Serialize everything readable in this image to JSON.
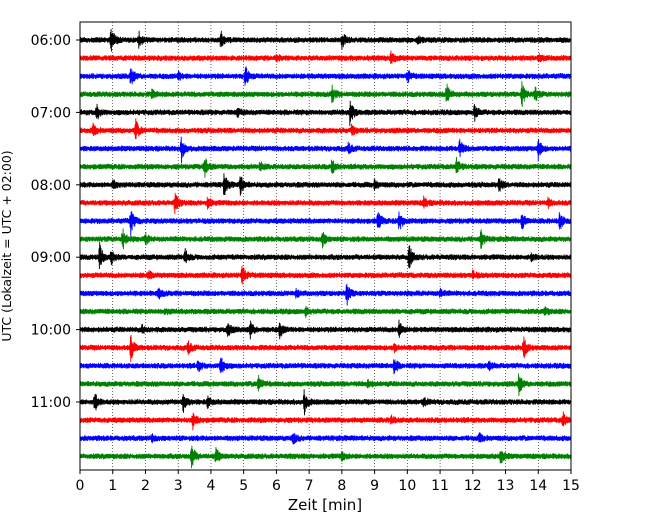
{
  "chart_data": {
    "type": "line",
    "title": "",
    "xlabel": "Zeit  [min]",
    "ylabel": "UTC (Lokalzeit = UTC + 02:00)",
    "xlim": [
      0,
      15
    ],
    "x_ticks": [
      0,
      1,
      2,
      3,
      4,
      5,
      6,
      7,
      8,
      9,
      10,
      11,
      12,
      13,
      14,
      15
    ],
    "x_tick_labels": [
      "0",
      "1",
      "2",
      "3",
      "4",
      "5",
      "6",
      "7",
      "8",
      "9",
      "10",
      "11",
      "12",
      "13",
      "14",
      "15"
    ],
    "y_tick_labels": [
      {
        "label": "06:00",
        "trace_index": 0
      },
      {
        "label": "07:00",
        "trace_index": 4
      },
      {
        "label": "08:00",
        "trace_index": 8
      },
      {
        "label": "09:00",
        "trace_index": 12
      },
      {
        "label": "10:00",
        "trace_index": 16
      },
      {
        "label": "11:00",
        "trace_index": 20
      }
    ],
    "grid": "vertical dotted lines at each minute",
    "colors": [
      "#000000",
      "#ff0000",
      "#0000ff",
      "#008000"
    ],
    "traces": [
      {
        "start": "06:00",
        "color": "#000000",
        "events": [
          [
            0.95,
            1.0
          ],
          [
            1.8,
            0.6
          ],
          [
            4.3,
            0.6
          ],
          [
            8.0,
            0.6
          ],
          [
            10.3,
            0.3
          ]
        ]
      },
      {
        "start": "06:15",
        "color": "#ff0000",
        "events": [
          [
            9.5,
            0.6
          ],
          [
            14.0,
            0.3
          ],
          [
            6.0,
            0.25
          ]
        ]
      },
      {
        "start": "06:30",
        "color": "#0000ff",
        "events": [
          [
            1.55,
            0.7
          ],
          [
            5.05,
            0.9
          ],
          [
            10.0,
            0.5
          ],
          [
            3.0,
            0.3
          ]
        ]
      },
      {
        "start": "06:45",
        "color": "#008000",
        "events": [
          [
            7.7,
            0.6
          ],
          [
            11.2,
            0.8
          ],
          [
            13.5,
            0.9
          ],
          [
            13.9,
            0.5
          ],
          [
            2.2,
            0.3
          ]
        ]
      },
      {
        "start": "07:00",
        "color": "#000000",
        "events": [
          [
            0.5,
            0.6
          ],
          [
            8.25,
            1.0
          ],
          [
            12.05,
            0.6
          ],
          [
            4.8,
            0.3
          ]
        ]
      },
      {
        "start": "07:15",
        "color": "#ff0000",
        "events": [
          [
            1.7,
            0.8
          ],
          [
            0.4,
            0.4
          ],
          [
            8.3,
            0.35
          ]
        ]
      },
      {
        "start": "07:30",
        "color": "#0000ff",
        "events": [
          [
            3.1,
            1.0
          ],
          [
            11.6,
            0.7
          ],
          [
            14.0,
            0.8
          ],
          [
            8.2,
            0.4
          ]
        ]
      },
      {
        "start": "07:45",
        "color": "#008000",
        "events": [
          [
            3.8,
            0.8
          ],
          [
            7.7,
            0.6
          ],
          [
            11.5,
            0.6
          ],
          [
            5.5,
            0.3
          ]
        ]
      },
      {
        "start": "08:00",
        "color": "#000000",
        "events": [
          [
            4.4,
            0.8
          ],
          [
            4.9,
            0.7
          ],
          [
            12.8,
            0.5
          ],
          [
            1.0,
            0.3
          ],
          [
            9.0,
            0.3
          ]
        ]
      },
      {
        "start": "08:15",
        "color": "#ff0000",
        "events": [
          [
            2.9,
            0.7
          ],
          [
            3.9,
            0.4
          ],
          [
            10.5,
            0.4
          ],
          [
            14.3,
            0.3
          ]
        ]
      },
      {
        "start": "08:30",
        "color": "#0000ff",
        "events": [
          [
            1.55,
            1.0
          ],
          [
            9.1,
            0.8
          ],
          [
            9.75,
            0.9
          ],
          [
            13.5,
            0.6
          ],
          [
            14.65,
            0.7
          ]
        ]
      },
      {
        "start": "08:45",
        "color": "#008000",
        "events": [
          [
            1.3,
            0.8
          ],
          [
            7.4,
            0.6
          ],
          [
            12.25,
            0.7
          ],
          [
            2.0,
            0.4
          ]
        ]
      },
      {
        "start": "09:00",
        "color": "#000000",
        "events": [
          [
            0.6,
            1.0
          ],
          [
            0.95,
            0.6
          ],
          [
            3.2,
            0.6
          ],
          [
            10.05,
            1.0
          ],
          [
            13.8,
            0.3
          ]
        ]
      },
      {
        "start": "09:15",
        "color": "#ff0000",
        "events": [
          [
            4.95,
            0.9
          ],
          [
            2.1,
            0.3
          ],
          [
            12.0,
            0.3
          ]
        ]
      },
      {
        "start": "09:30",
        "color": "#0000ff",
        "events": [
          [
            8.15,
            0.9
          ],
          [
            2.4,
            0.4
          ],
          [
            6.6,
            0.3
          ],
          [
            11.0,
            0.3
          ]
        ]
      },
      {
        "start": "09:45",
        "color": "#008000",
        "events": [
          [
            6.9,
            0.3
          ],
          [
            14.2,
            0.3
          ],
          [
            2.6,
            0.2
          ]
        ]
      },
      {
        "start": "10:00",
        "color": "#000000",
        "events": [
          [
            4.5,
            0.6
          ],
          [
            5.2,
            0.6
          ],
          [
            6.1,
            0.6
          ],
          [
            9.75,
            0.7
          ],
          [
            1.9,
            0.3
          ]
        ]
      },
      {
        "start": "10:15",
        "color": "#ff0000",
        "events": [
          [
            1.55,
            1.0
          ],
          [
            3.3,
            0.5
          ],
          [
            13.55,
            0.8
          ],
          [
            9.6,
            0.3
          ]
        ]
      },
      {
        "start": "10:30",
        "color": "#0000ff",
        "events": [
          [
            4.3,
            0.8
          ],
          [
            9.6,
            0.6
          ],
          [
            3.6,
            0.4
          ],
          [
            12.5,
            0.3
          ]
        ]
      },
      {
        "start": "10:45",
        "color": "#008000",
        "events": [
          [
            5.45,
            0.7
          ],
          [
            13.4,
            0.8
          ],
          [
            8.8,
            0.3
          ]
        ]
      },
      {
        "start": "11:00",
        "color": "#000000",
        "events": [
          [
            0.45,
            0.8
          ],
          [
            3.15,
            0.9
          ],
          [
            6.85,
            0.9
          ],
          [
            3.9,
            0.4
          ],
          [
            10.5,
            0.3
          ]
        ]
      },
      {
        "start": "11:15",
        "color": "#ff0000",
        "events": [
          [
            3.45,
            0.6
          ],
          [
            14.75,
            0.6
          ],
          [
            9.5,
            0.3
          ]
        ]
      },
      {
        "start": "11:30",
        "color": "#0000ff",
        "events": [
          [
            6.5,
            0.5
          ],
          [
            12.2,
            0.3
          ],
          [
            2.2,
            0.25
          ]
        ]
      },
      {
        "start": "11:45",
        "color": "#008000",
        "events": [
          [
            3.4,
            1.0
          ],
          [
            4.15,
            0.6
          ],
          [
            12.85,
            0.6
          ],
          [
            8.0,
            0.3
          ]
        ]
      }
    ]
  }
}
